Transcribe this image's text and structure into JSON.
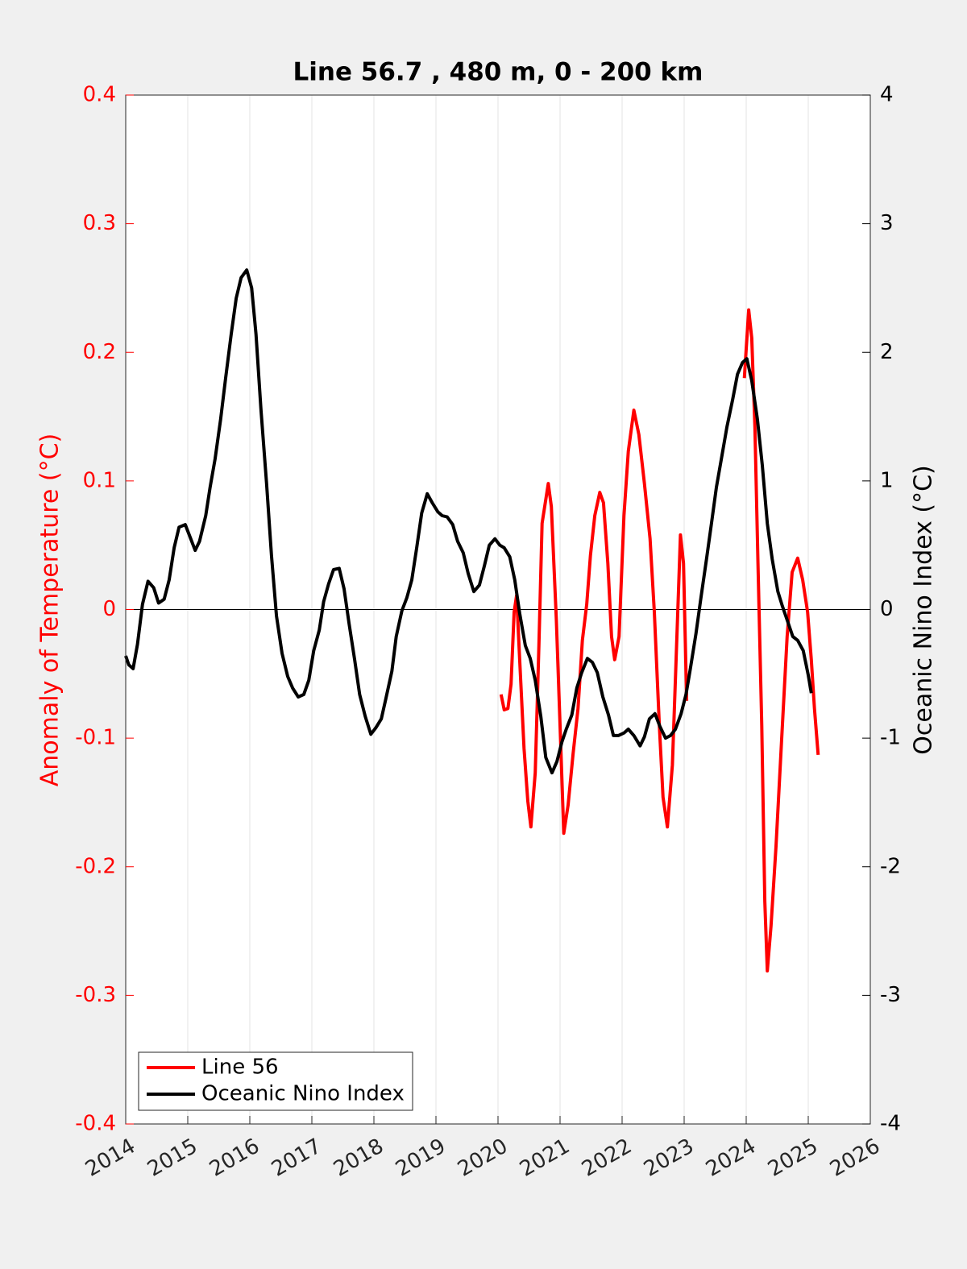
{
  "chart_data": {
    "type": "line",
    "title": "Line 56.7 , 480 m, 0 - 200 km",
    "ylabel": "Anomaly of Temperature (°C)",
    "y2label": "Oceanic Nino Index (°C)",
    "xlim": [
      2014,
      2026
    ],
    "xticks": [
      2014,
      2015,
      2016,
      2017,
      2018,
      2019,
      2020,
      2021,
      2022,
      2023,
      2024,
      2025,
      2026
    ],
    "ylim": [
      -0.4,
      0.4
    ],
    "yticks": [
      -0.4,
      -0.3,
      -0.2,
      -0.1,
      0,
      0.1,
      0.2,
      0.3,
      0.4
    ],
    "y2lim": [
      -4,
      4
    ],
    "y2ticks": [
      -4,
      -3,
      -2,
      -1,
      0,
      1,
      2,
      3,
      4
    ],
    "ycolor": "#ff0000",
    "y2color": "#000000",
    "xgrid": true,
    "zero_line": true,
    "legend": "lower left",
    "series": [
      {
        "name": "Line 56",
        "color": "#ff0000",
        "axis": "y",
        "x": [
          2020.05,
          2020.1,
          2020.16,
          2020.21,
          2020.26,
          2020.3,
          2020.35,
          2020.42,
          2020.48,
          2020.53,
          2020.6,
          2020.66,
          2020.71,
          2020.81,
          2020.86,
          2020.94,
          2021.0,
          2021.06,
          2021.13,
          2021.21,
          2021.29,
          2021.36,
          2021.43,
          2021.49,
          2021.56,
          2021.64,
          2021.7,
          2021.77,
          2021.83,
          2021.88,
          2021.95,
          2022.03,
          2022.1,
          2022.19,
          2022.27,
          2022.36,
          2022.45,
          2022.52,
          2022.6,
          2022.66,
          2022.73,
          2022.81,
          2022.87,
          2022.94,
          2022.99,
          2023.04,
          2023.5,
          2023.97,
          2024.04,
          2024.09,
          2024.14,
          2024.19,
          2024.25,
          2024.3,
          2024.34,
          2024.4,
          2024.48,
          2024.57,
          2024.66,
          2024.74,
          2024.83,
          2024.91,
          2024.99,
          2025.05,
          2025.1,
          2025.16
        ],
        "values": [
          -0.066,
          -0.078,
          -0.077,
          -0.058,
          -0.002,
          0.011,
          -0.039,
          -0.108,
          -0.149,
          -0.169,
          -0.127,
          -0.027,
          0.067,
          0.098,
          0.08,
          -0.008,
          -0.09,
          -0.174,
          -0.152,
          -0.112,
          -0.077,
          -0.024,
          0.004,
          0.042,
          0.073,
          0.091,
          0.083,
          0.036,
          -0.021,
          -0.039,
          -0.021,
          0.073,
          0.123,
          0.155,
          0.136,
          0.098,
          0.055,
          -0.002,
          -0.09,
          -0.146,
          -0.169,
          -0.121,
          -0.039,
          0.058,
          0.036,
          -0.071,
          null,
          0.18,
          0.233,
          0.211,
          0.142,
          0.036,
          -0.09,
          -0.227,
          -0.281,
          -0.246,
          -0.184,
          -0.102,
          -0.021,
          0.029,
          0.04,
          0.023,
          -0.002,
          -0.039,
          -0.077,
          -0.113
        ]
      },
      {
        "name": "Oceanic Nino Index",
        "color": "#000000",
        "axis": "y2",
        "x": [
          2014.0,
          2014.05,
          2014.12,
          2014.19,
          2014.27,
          2014.36,
          2014.45,
          2014.53,
          2014.62,
          2014.7,
          2014.78,
          2014.86,
          2014.96,
          2015.04,
          2015.12,
          2015.19,
          2015.29,
          2015.36,
          2015.44,
          2015.53,
          2015.61,
          2015.7,
          2015.78,
          2015.86,
          2015.95,
          2016.03,
          2016.1,
          2016.18,
          2016.27,
          2016.35,
          2016.43,
          2016.52,
          2016.61,
          2016.69,
          2016.78,
          2016.87,
          2016.95,
          2017.03,
          2017.12,
          2017.19,
          2017.27,
          2017.35,
          2017.44,
          2017.52,
          2017.6,
          2017.69,
          2017.77,
          2017.86,
          2017.95,
          2018.03,
          2018.12,
          2018.19,
          2018.29,
          2018.36,
          2018.45,
          2018.53,
          2018.61,
          2018.69,
          2018.77,
          2018.86,
          2018.94,
          2019.03,
          2019.1,
          2019.18,
          2019.27,
          2019.35,
          2019.44,
          2019.52,
          2019.61,
          2019.7,
          2019.78,
          2019.86,
          2019.95,
          2020.03,
          2020.1,
          2020.19,
          2020.27,
          2020.35,
          2020.44,
          2020.52,
          2020.6,
          2020.69,
          2020.77,
          2020.87,
          2020.95,
          2021.03,
          2021.1,
          2021.19,
          2021.27,
          2021.35,
          2021.44,
          2021.52,
          2021.6,
          2021.69,
          2021.78,
          2021.86,
          2021.94,
          2022.03,
          2022.1,
          2022.19,
          2022.29,
          2022.36,
          2022.44,
          2022.53,
          2022.61,
          2022.7,
          2022.78,
          2022.86,
          2022.95,
          2023.03,
          2023.1,
          2023.19,
          2023.27,
          2023.36,
          2023.44,
          2023.52,
          2023.61,
          2023.69,
          2023.78,
          2023.86,
          2023.94,
          2024.01,
          2024.09,
          2024.18,
          2024.26,
          2024.34,
          2024.42,
          2024.51,
          2024.58,
          2024.68,
          2024.75,
          2024.83,
          2024.92,
          2025.0,
          2025.05
        ],
        "values": [
          -0.36,
          -0.43,
          -0.46,
          -0.27,
          0.04,
          0.22,
          0.17,
          0.05,
          0.08,
          0.23,
          0.48,
          0.64,
          0.66,
          0.56,
          0.46,
          0.53,
          0.73,
          0.95,
          1.17,
          1.48,
          1.8,
          2.14,
          2.42,
          2.58,
          2.64,
          2.5,
          2.14,
          1.55,
          0.98,
          0.42,
          -0.05,
          -0.34,
          -0.52,
          -0.61,
          -0.68,
          -0.66,
          -0.55,
          -0.32,
          -0.16,
          0.06,
          0.2,
          0.31,
          0.32,
          0.16,
          -0.11,
          -0.39,
          -0.66,
          -0.83,
          -0.97,
          -0.92,
          -0.85,
          -0.7,
          -0.48,
          -0.21,
          -0.01,
          0.09,
          0.23,
          0.48,
          0.75,
          0.9,
          0.83,
          0.76,
          0.73,
          0.72,
          0.66,
          0.53,
          0.44,
          0.28,
          0.14,
          0.19,
          0.34,
          0.5,
          0.55,
          0.5,
          0.48,
          0.41,
          0.23,
          -0.03,
          -0.28,
          -0.38,
          -0.55,
          -0.83,
          -1.15,
          -1.27,
          -1.18,
          -1.03,
          -0.93,
          -0.82,
          -0.61,
          -0.49,
          -0.38,
          -0.41,
          -0.49,
          -0.68,
          -0.82,
          -0.98,
          -0.98,
          -0.96,
          -0.93,
          -0.98,
          -1.06,
          -0.99,
          -0.85,
          -0.81,
          -0.91,
          -1.0,
          -0.98,
          -0.93,
          -0.81,
          -0.66,
          -0.46,
          -0.19,
          0.09,
          0.39,
          0.67,
          0.95,
          1.2,
          1.42,
          1.63,
          1.83,
          1.92,
          1.95,
          1.78,
          1.48,
          1.12,
          0.67,
          0.39,
          0.14,
          0.03,
          -0.11,
          -0.21,
          -0.24,
          -0.32,
          -0.51,
          -0.65
        ]
      }
    ]
  }
}
